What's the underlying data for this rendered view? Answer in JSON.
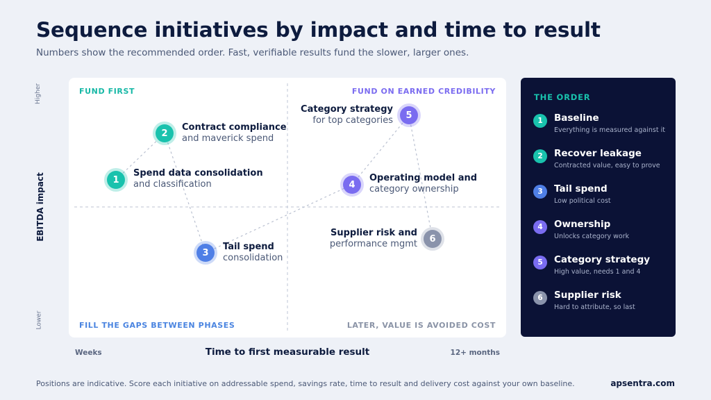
{
  "title": "Sequence initiatives by impact and time to result",
  "subtitle": "Numbers show the recommended order. Fast, verifiable results fund the slower, larger ones.",
  "matrix": {
    "y_axis": {
      "label": "EBITDA impact",
      "high": "Higher",
      "low": "Lower"
    },
    "x_axis": {
      "label": "Time to first measurable result",
      "low": "Weeks",
      "high": "12+ months"
    },
    "quadrants": {
      "top_left": "FUND FIRST",
      "top_right": "FUND ON EARNED CREDIBILITY",
      "bottom_left": "FILL THE GAPS BETWEEN PHASES",
      "bottom_right": "LATER, VALUE IS AVOIDED COST"
    },
    "initiatives": [
      {
        "num": "1",
        "line1": "Spend data consolidation",
        "line2": "and classification",
        "color": "#19c2ad"
      },
      {
        "num": "2",
        "line1": "Contract compliance",
        "line2": "and maverick spend",
        "color": "#19c2ad"
      },
      {
        "num": "3",
        "line1": "Tail spend",
        "line2": "consolidation",
        "color": "#4f7fe6"
      },
      {
        "num": "4",
        "line1": "Operating model and",
        "line2": "category ownership",
        "color": "#7a6cf0"
      },
      {
        "num": "5",
        "line1": "Category strategy",
        "line2": "for top categories",
        "color": "#7a6cf0"
      },
      {
        "num": "6",
        "line1": "Supplier risk and",
        "line2": "performance mgmt",
        "color": "#8a93ab"
      }
    ]
  },
  "order_panel": {
    "heading": "THE ORDER",
    "items": [
      {
        "num": "1",
        "name": "Baseline",
        "desc": "Everything is measured against it",
        "color": "#19c2ad"
      },
      {
        "num": "2",
        "name": "Recover leakage",
        "desc": "Contracted value, easy to prove",
        "color": "#19c2ad"
      },
      {
        "num": "3",
        "name": "Tail spend",
        "desc": "Low political cost",
        "color": "#4f7fe6"
      },
      {
        "num": "4",
        "name": "Ownership",
        "desc": "Unlocks category work",
        "color": "#7a6cf0"
      },
      {
        "num": "5",
        "name": "Category strategy",
        "desc": "High value, needs 1 and 4",
        "color": "#7a6cf0"
      },
      {
        "num": "6",
        "name": "Supplier risk",
        "desc": "Hard to attribute, so last",
        "color": "#8a93ab"
      }
    ]
  },
  "footer": {
    "note": "Positions are indicative. Score each initiative on addressable spend, savings rate, time to result and delivery cost against your own baseline.",
    "brand": "apsentra.com"
  }
}
